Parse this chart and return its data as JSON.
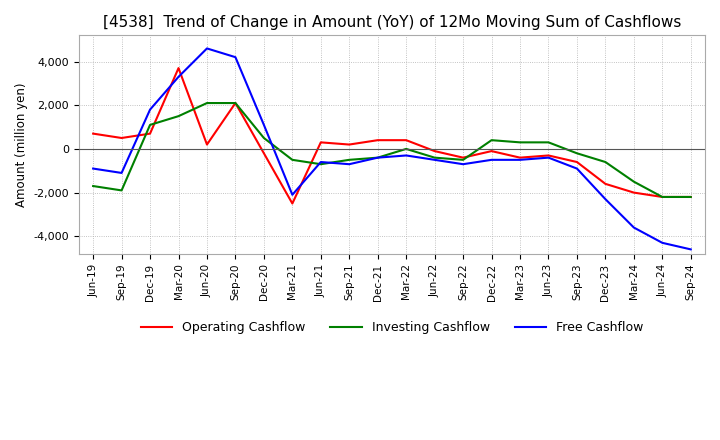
{
  "title": "[4538]  Trend of Change in Amount (YoY) of 12Mo Moving Sum of Cashflows",
  "ylabel": "Amount (million yen)",
  "x_labels": [
    "Jun-19",
    "Sep-19",
    "Dec-19",
    "Mar-20",
    "Jun-20",
    "Sep-20",
    "Dec-20",
    "Mar-21",
    "Jun-21",
    "Sep-21",
    "Dec-21",
    "Mar-22",
    "Jun-22",
    "Sep-22",
    "Dec-22",
    "Mar-23",
    "Jun-23",
    "Sep-23",
    "Dec-23",
    "Mar-24",
    "Jun-24",
    "Sep-24"
  ],
  "operating_cashflow": [
    700,
    500,
    700,
    3700,
    200,
    2100,
    -200,
    -2500,
    300,
    200,
    400,
    400,
    -100,
    -400,
    -100,
    -400,
    -300,
    -600,
    -1600,
    -2000,
    -2200,
    -2200
  ],
  "investing_cashflow": [
    -1700,
    -1900,
    1100,
    1500,
    2100,
    2100,
    500,
    -500,
    -700,
    -500,
    -400,
    0,
    -400,
    -500,
    400,
    300,
    300,
    -200,
    -600,
    -1500,
    -2200,
    -2200
  ],
  "free_cashflow": [
    -900,
    -1100,
    1800,
    3300,
    4600,
    4200,
    1100,
    -2100,
    -600,
    -700,
    -400,
    -300,
    -500,
    -700,
    -500,
    -500,
    -400,
    -900,
    -2300,
    -3600,
    -4300,
    -4600
  ],
  "operating_color": "#ff0000",
  "investing_color": "#008000",
  "free_color": "#0000ff",
  "ylim": [
    -4800,
    5200
  ],
  "yticks": [
    -4000,
    -2000,
    0,
    2000,
    4000
  ],
  "background_color": "#ffffff",
  "grid_color": "#b0b0b0",
  "title_fontsize": 11,
  "legend_labels": [
    "Operating Cashflow",
    "Investing Cashflow",
    "Free Cashflow"
  ]
}
